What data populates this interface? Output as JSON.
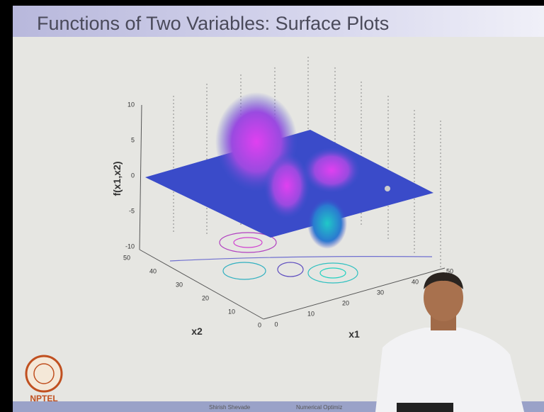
{
  "slide": {
    "title": "Functions of Two Variables: Surface Plots",
    "plot": {
      "z_label": "f(x1,x2)",
      "x1_label": "x1",
      "x2_label": "x2",
      "z_ticks": [
        "10",
        "5",
        "0",
        "-5",
        "-10"
      ],
      "x2_ticks": [
        "50",
        "40",
        "30",
        "20",
        "10",
        "0"
      ],
      "x1_ticks": [
        "0",
        "10",
        "20",
        "30",
        "40",
        "50"
      ]
    },
    "logo": "NPTEL",
    "footer": {
      "author": "Shirish Shevade",
      "course": "Numerical Optimiz"
    }
  }
}
